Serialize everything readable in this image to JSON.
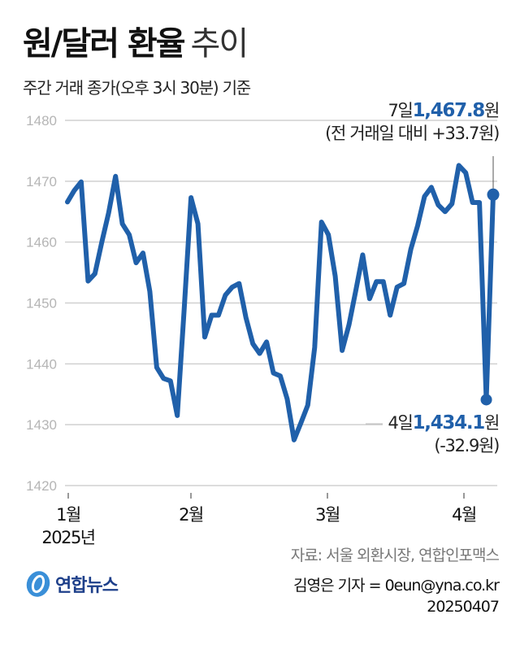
{
  "header": {
    "title_bold": "원/달러 환율",
    "title_light": "추이",
    "subtitle": "주간 거래 종가(오후 3시 30분) 기준"
  },
  "annotations": {
    "high": {
      "day": "7일",
      "value": "1,467.8",
      "unit": "원",
      "change": "(전 거래일 대비 +33.7원)"
    },
    "low": {
      "day": "4일",
      "value": "1,434.1",
      "unit": "원",
      "change": "(-32.9원)"
    }
  },
  "footer": {
    "source": "자료: 서울 외환시장, 연합인포맥스",
    "reporter": "김영은 기자 = 0eun@yna.co.kr",
    "date": "20250407",
    "logo_text": "연합뉴스"
  },
  "colors": {
    "line": "#2060aa",
    "grid": "#d0d0d0",
    "axis_label": "#b5b5b5"
  },
  "chart_data": {
    "type": "line",
    "title": "원/달러 환율 추이",
    "subtitle": "주간 거래 종가(오후 3시 30분) 기준",
    "xlabel": "",
    "ylabel": "",
    "ylim": [
      1420,
      1480
    ],
    "yticks": [
      1420,
      1430,
      1440,
      1450,
      1460,
      1470,
      1480
    ],
    "grid": true,
    "legend": "none",
    "x_tick_labels": [
      "1월",
      "2월",
      "3월",
      "4월"
    ],
    "x_year_label": "2025년",
    "series": [
      {
        "name": "원/달러 환율",
        "values": [
          1466.6,
          1468.5,
          1469.9,
          1453.6,
          1454.8,
          1460.0,
          1464.8,
          1470.8,
          1463.0,
          1461.2,
          1456.6,
          1458.2,
          1451.9,
          1439.4,
          1437.6,
          1437.2,
          1431.5,
          1449.0,
          1467.3,
          1463.0,
          1444.4,
          1448.0,
          1448.0,
          1451.3,
          1452.6,
          1453.2,
          1447.6,
          1443.3,
          1441.7,
          1443.6,
          1438.5,
          1438.0,
          1434.2,
          1427.5,
          1430.3,
          1433.2,
          1442.7,
          1463.3,
          1461.2,
          1454.4,
          1442.2,
          1446.4,
          1452.1,
          1457.9,
          1450.7,
          1453.5,
          1453.5,
          1448.0,
          1452.6,
          1453.2,
          1458.8,
          1462.7,
          1467.5,
          1469.0,
          1466.1,
          1465.0,
          1466.3,
          1472.6,
          1471.4,
          1466.5,
          1466.5,
          1434.1,
          1467.8
        ]
      }
    ],
    "highlighted_points": [
      {
        "label": "4월 4일",
        "value": 1434.1,
        "change": -32.9
      },
      {
        "label": "4월 7일",
        "value": 1467.8,
        "change": 33.7
      }
    ]
  }
}
